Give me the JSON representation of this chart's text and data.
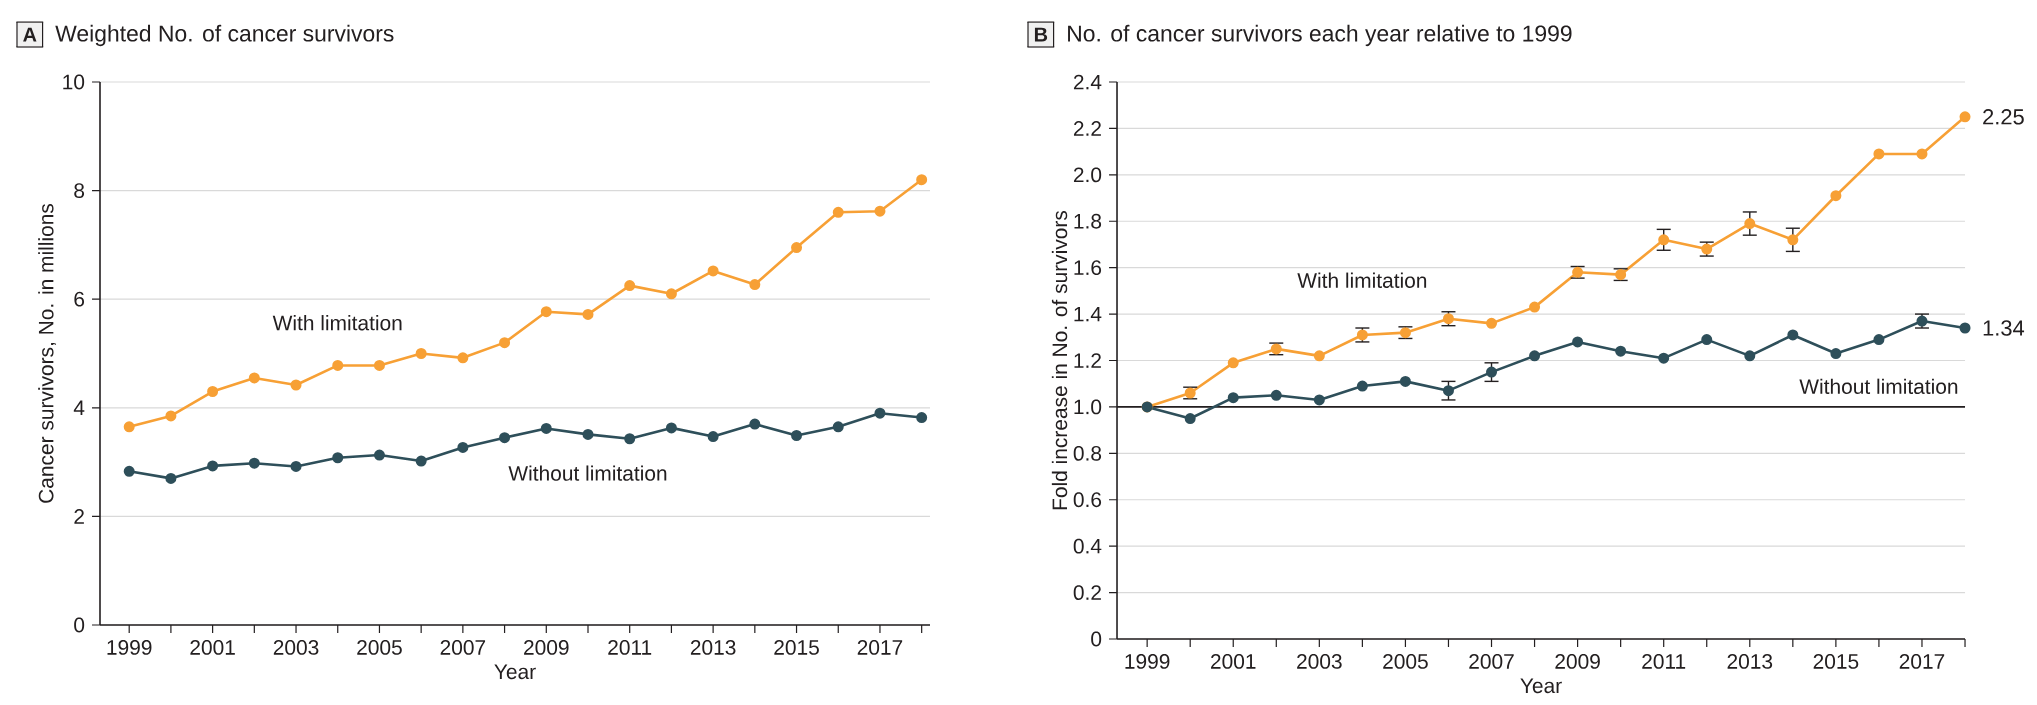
{
  "chart_data": [
    {
      "type": "line",
      "title": "Weighted No. of cancer survivors",
      "xlabel": "Year",
      "ylabel": "Cancer survivors, No. in millions",
      "annotations": [
        "A"
      ],
      "x": [
        1999,
        2000,
        2001,
        2002,
        2003,
        2004,
        2005,
        2006,
        2007,
        2008,
        2009,
        2010,
        2011,
        2012,
        2013,
        2014,
        2015,
        2016,
        2017,
        2018
      ],
      "series": [
        {
          "name": "With limitation",
          "color": "#f7a035",
          "values": [
            3.65,
            3.85,
            4.3,
            4.55,
            4.42,
            4.78,
            4.78,
            5.0,
            4.92,
            5.2,
            5.77,
            5.72,
            6.25,
            6.1,
            6.52,
            6.27,
            6.95,
            7.6,
            7.62,
            8.2
          ]
        },
        {
          "name": "Without limitation",
          "color": "#2e4f5a",
          "values": [
            2.83,
            2.7,
            2.93,
            2.98,
            2.92,
            3.08,
            3.13,
            3.02,
            3.27,
            3.45,
            3.62,
            3.51,
            3.43,
            3.63,
            3.47,
            3.7,
            3.49,
            3.65,
            3.9,
            3.82
          ]
        }
      ],
      "xlim": [
        1998.3,
        2018.2
      ],
      "ylim": [
        0,
        10
      ],
      "xticks": [
        1999,
        {
          "value": 2000,
          "label": null
        },
        2001,
        {
          "value": 2002,
          "label": null
        },
        2003,
        {
          "value": 2004,
          "label": null
        },
        2005,
        {
          "value": 2006,
          "label": null
        },
        2007,
        {
          "value": 2008,
          "label": null
        },
        2009,
        {
          "value": 2010,
          "label": null
        },
        2011,
        {
          "value": 2012,
          "label": null
        },
        2013,
        {
          "value": 2014,
          "label": null
        },
        2015,
        {
          "value": 2016,
          "label": null
        },
        2017,
        {
          "value": 2018,
          "label": null
        }
      ],
      "yticks": [
        0,
        2,
        4,
        6,
        8,
        10
      ],
      "grid": "y",
      "legend": false,
      "marker": "circle",
      "line_style": "solid"
    },
    {
      "type": "line",
      "title": "No. of cancer survivors each year relative to 1999",
      "xlabel": "Year",
      "ylabel": "Fold increase in No. of survivors",
      "annotations": [
        "B"
      ],
      "x": [
        1999,
        2000,
        2001,
        2002,
        2003,
        2004,
        2005,
        2006,
        2007,
        2008,
        2009,
        2010,
        2011,
        2012,
        2013,
        2014,
        2015,
        2016,
        2017,
        2018
      ],
      "series": [
        {
          "name": "With limitation",
          "color": "#f7a035",
          "values": [
            1.0,
            1.06,
            1.19,
            1.25,
            1.22,
            1.31,
            1.32,
            1.38,
            1.36,
            1.43,
            1.58,
            1.57,
            1.72,
            1.68,
            1.79,
            1.72,
            1.91,
            2.09,
            2.09,
            2.25
          ],
          "errors": [
            null,
            0.025,
            null,
            0.025,
            null,
            0.03,
            0.025,
            0.03,
            null,
            null,
            0.025,
            0.025,
            0.045,
            0.03,
            0.05,
            0.05,
            null,
            null,
            null,
            null
          ],
          "value_labels": [
            null,
            null,
            null,
            null,
            null,
            null,
            null,
            null,
            null,
            null,
            null,
            null,
            null,
            null,
            null,
            null,
            null,
            null,
            null,
            "2.25"
          ]
        },
        {
          "name": "Without limitation",
          "color": "#2e4f5a",
          "values": [
            1.0,
            0.95,
            1.04,
            1.05,
            1.03,
            1.09,
            1.11,
            1.07,
            1.15,
            1.22,
            1.28,
            1.24,
            1.21,
            1.29,
            1.22,
            1.31,
            1.23,
            1.29,
            1.37,
            1.34
          ],
          "errors": [
            null,
            null,
            null,
            null,
            null,
            null,
            null,
            0.04,
            0.04,
            null,
            null,
            null,
            null,
            null,
            null,
            null,
            null,
            null,
            0.03,
            null
          ],
          "value_labels": [
            null,
            null,
            null,
            null,
            null,
            null,
            null,
            null,
            null,
            null,
            null,
            null,
            null,
            null,
            null,
            null,
            null,
            null,
            null,
            "1.34"
          ]
        }
      ],
      "ref_lines": [
        {
          "axis": "y",
          "value": 1,
          "color": "#231f20"
        }
      ],
      "xlim": [
        1998.3,
        2018
      ],
      "ylim": [
        0,
        2.4
      ],
      "xticks": [
        1999,
        {
          "value": 2000,
          "label": null
        },
        2001,
        {
          "value": 2002,
          "label": null
        },
        2003,
        {
          "value": 2004,
          "label": null
        },
        2005,
        {
          "value": 2006,
          "label": null
        },
        2007,
        {
          "value": 2008,
          "label": null
        },
        2009,
        {
          "value": 2010,
          "label": null
        },
        2011,
        {
          "value": 2012,
          "label": null
        },
        2013,
        {
          "value": 2014,
          "label": null
        },
        2015,
        {
          "value": 2016,
          "label": null
        },
        2017,
        {
          "value": 2018,
          "label": null
        }
      ],
      "yticks": [
        0,
        0.2,
        0.4,
        0.6,
        0.8,
        {
          "value": 1,
          "label": "1.0"
        },
        1.2,
        1.4,
        1.6,
        1.8,
        {
          "value": 2,
          "label": "2.0"
        },
        2.2,
        2.4
      ],
      "grid": "y",
      "legend": false,
      "marker": "circle",
      "line_style": "solid"
    }
  ]
}
